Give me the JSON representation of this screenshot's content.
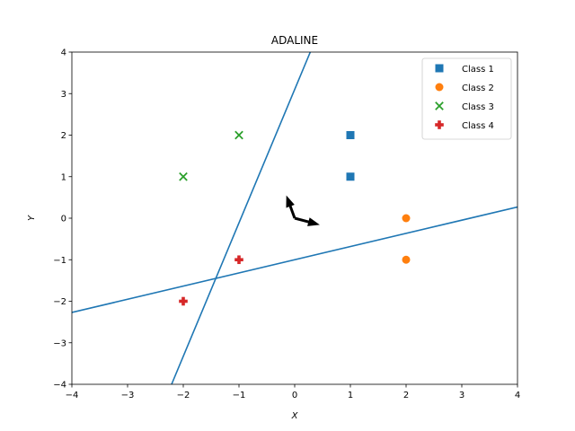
{
  "chart_data": {
    "type": "scatter",
    "title": "ADALINE",
    "xlabel": "X",
    "ylabel": "Y",
    "xlim": [
      -4,
      4
    ],
    "ylim": [
      -4,
      4
    ],
    "xticks": [
      -4,
      -3,
      -2,
      -1,
      0,
      1,
      2,
      3,
      4
    ],
    "yticks": [
      -4,
      -3,
      -2,
      -1,
      0,
      1,
      2,
      3,
      4
    ],
    "xtick_labels": [
      "−4",
      "−3",
      "−2",
      "−1",
      "0",
      "1",
      "2",
      "3",
      "4"
    ],
    "ytick_labels": [
      "−4",
      "−3",
      "−2",
      "−1",
      "0",
      "1",
      "2",
      "3",
      "4"
    ],
    "grid": false,
    "legend_position": "top-right",
    "series": [
      {
        "name": "Class 1",
        "marker": "square",
        "color": "#1f77b4",
        "points": [
          [
            1,
            2
          ],
          [
            1,
            1
          ]
        ]
      },
      {
        "name": "Class 2",
        "marker": "circle",
        "color": "#ff7f0e",
        "points": [
          [
            2,
            0
          ],
          [
            2,
            -1
          ]
        ]
      },
      {
        "name": "Class 3",
        "marker": "x",
        "color": "#2ca02c",
        "points": [
          [
            -1,
            2
          ],
          [
            -2,
            1
          ]
        ]
      },
      {
        "name": "Class 4",
        "marker": "plus",
        "color": "#d62728",
        "points": [
          [
            -1,
            -1
          ],
          [
            -2,
            -2
          ]
        ]
      }
    ],
    "decision_lines": [
      {
        "color": "#1f77b4",
        "points": [
          [
            -2.21,
            -4
          ],
          [
            0.28,
            4
          ]
        ]
      },
      {
        "color": "#1f77b4",
        "points": [
          [
            -4,
            -2.27
          ],
          [
            4,
            0.27
          ]
        ]
      }
    ],
    "arrows": [
      {
        "color": "#000000",
        "from": [
          0,
          0
        ],
        "to": [
          -0.15,
          0.55
        ]
      },
      {
        "color": "#000000",
        "from": [
          0,
          0
        ],
        "to": [
          0.45,
          -0.16
        ]
      }
    ]
  }
}
